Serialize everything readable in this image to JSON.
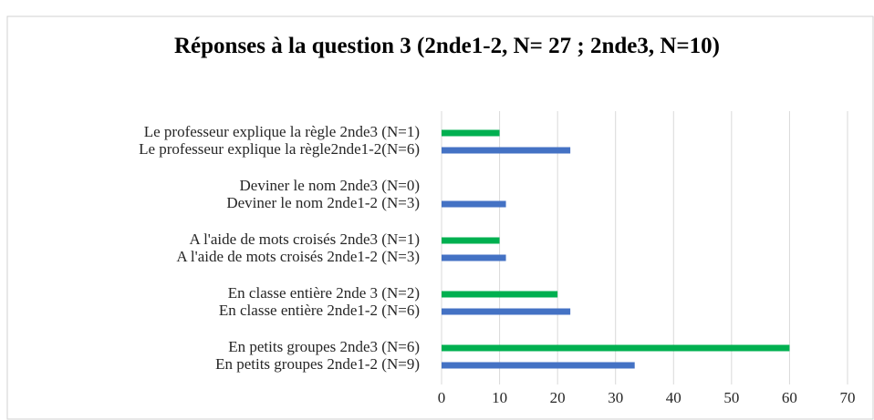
{
  "chart_data": {
    "type": "bar",
    "orientation": "horizontal",
    "title": "Réponses à la question 3 (2nde1-2, N= 27 ; 2nde3, N=10)",
    "categories": [
      "Le professeur explique la règle 2nde3 (N=1)",
      "Le professeur explique la règle2nde1-2(N=6)",
      "Deviner le nom 2nde3 (N=0)",
      "Deviner le nom 2nde1-2 (N=3)",
      "A l'aide de mots croisés 2nde3 (N=1)",
      "A l'aide de mots croisés 2nde1-2 (N=3)",
      "En classe entière 2nde 3 (N=2)",
      "En classe entière 2nde1-2 (N=6)",
      "En petits groupes 2nde3 (N=6)",
      "En petits groupes 2nde1-2 (N=9)"
    ],
    "values": [
      10,
      22.2,
      0,
      11.1,
      10,
      11.1,
      20,
      22.2,
      60,
      33.3
    ],
    "colors": [
      "#00b050",
      "#4472c4",
      "#00b050",
      "#4472c4",
      "#00b050",
      "#4472c4",
      "#00b050",
      "#4472c4",
      "#00b050",
      "#4472c4"
    ],
    "xlim": [
      0,
      70
    ],
    "xticks": [
      0,
      10,
      20,
      30,
      40,
      50,
      60,
      70
    ],
    "grid": true
  }
}
